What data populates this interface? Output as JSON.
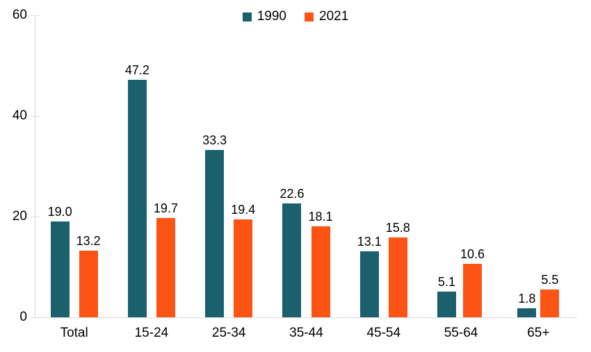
{
  "chart_data": {
    "type": "bar",
    "title": "",
    "xlabel": "",
    "ylabel": "",
    "categories": [
      "Total",
      "15-24",
      "25-34",
      "35-44",
      "45-54",
      "55-64",
      "65+"
    ],
    "series": [
      {
        "name": "1990",
        "color": "#1a606d",
        "values": [
          19.0,
          47.2,
          33.3,
          22.6,
          13.1,
          5.1,
          1.8
        ]
      },
      {
        "name": "2021",
        "color": "#fb5415",
        "values": [
          13.2,
          19.7,
          19.4,
          18.1,
          15.8,
          10.6,
          5.5
        ]
      }
    ],
    "ylim": [
      0,
      60
    ],
    "yticks": [
      0,
      20,
      40,
      60
    ],
    "grid": false,
    "legend_position": "top-center",
    "data_labels": true,
    "label_format": ".1f"
  },
  "style_colors": {
    "axis_line": "#d9d9d9",
    "label_text": "#000000"
  }
}
